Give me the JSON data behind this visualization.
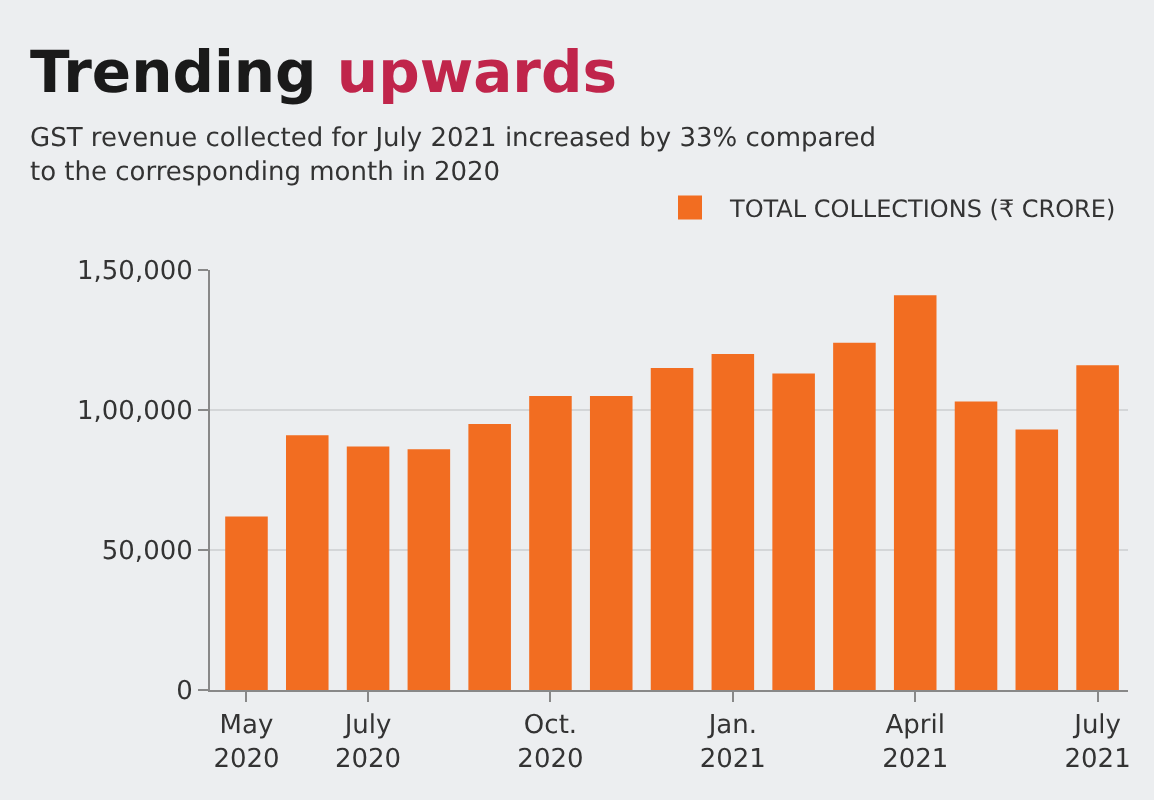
{
  "chart_data": {
    "type": "bar",
    "title": "Trending upwards",
    "subtitle": "GST revenue collected for July 2021 increased by 33% compared to the corresponding month in 2020",
    "categories": [
      "May 2020",
      null,
      "July 2020",
      null,
      null,
      "Oct. 2020",
      null,
      null,
      "Jan. 2021",
      null,
      null,
      "April 2021",
      null,
      null,
      "July 2021"
    ],
    "series": [
      {
        "name": "TOTAL COLLECTIONS (₹ CRORE)",
        "color": "#f26d21",
        "values": [
          62000,
          91000,
          87000,
          86000,
          95000,
          105000,
          105000,
          115000,
          120000,
          113000,
          124000,
          141000,
          103000,
          93000,
          116000
        ]
      }
    ],
    "ylim": [
      0,
      150000
    ],
    "yticks": [
      0,
      {
        "value": 50000,
        "label": "50,000"
      },
      {
        "value": 100000,
        "label": "1,00,000"
      },
      {
        "value": 150000,
        "label": "1,50,000"
      }
    ],
    "grid": "y",
    "legend": "top right"
  }
}
